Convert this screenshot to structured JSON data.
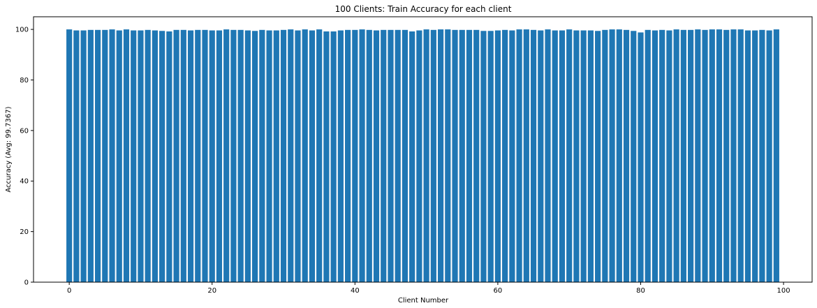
{
  "chart_data": {
    "type": "bar",
    "title": "100 Clients: Train Accuracy for each client",
    "xlabel": "Client Number",
    "ylabel": "Accuracy (Avg: 99.7367)",
    "x_ticks": [
      0,
      20,
      40,
      60,
      80,
      100
    ],
    "y_ticks": [
      0,
      20,
      40,
      60,
      80,
      100
    ],
    "xlim": [
      -5,
      104
    ],
    "ylim": [
      0,
      105
    ],
    "bar_color": "#1f77b4",
    "grid": false,
    "categories": [
      0,
      1,
      2,
      3,
      4,
      5,
      6,
      7,
      8,
      9,
      10,
      11,
      12,
      13,
      14,
      15,
      16,
      17,
      18,
      19,
      20,
      21,
      22,
      23,
      24,
      25,
      26,
      27,
      28,
      29,
      30,
      31,
      32,
      33,
      34,
      35,
      36,
      37,
      38,
      39,
      40,
      41,
      42,
      43,
      44,
      45,
      46,
      47,
      48,
      49,
      50,
      51,
      52,
      53,
      54,
      55,
      56,
      57,
      58,
      59,
      60,
      61,
      62,
      63,
      64,
      65,
      66,
      67,
      68,
      69,
      70,
      71,
      72,
      73,
      74,
      75,
      76,
      77,
      78,
      79,
      80,
      81,
      82,
      83,
      84,
      85,
      86,
      87,
      88,
      89,
      90,
      91,
      92,
      93,
      94,
      95,
      96,
      97,
      98,
      99
    ],
    "values": [
      100.0,
      99.6,
      99.6,
      99.8,
      99.8,
      99.8,
      100.0,
      99.6,
      100.0,
      99.6,
      99.6,
      99.8,
      99.6,
      99.4,
      99.2,
      99.8,
      99.8,
      99.6,
      99.8,
      99.8,
      99.6,
      99.6,
      100.0,
      99.8,
      99.8,
      99.6,
      99.4,
      99.8,
      99.6,
      99.6,
      99.8,
      100.0,
      99.6,
      100.0,
      99.6,
      100.0,
      99.2,
      99.2,
      99.6,
      99.8,
      99.8,
      100.0,
      99.8,
      99.6,
      99.8,
      99.8,
      99.8,
      99.8,
      99.2,
      99.6,
      100.0,
      99.8,
      100.0,
      100.0,
      99.8,
      99.8,
      99.8,
      99.8,
      99.4,
      99.4,
      99.6,
      99.8,
      99.6,
      100.0,
      100.0,
      99.8,
      99.6,
      100.0,
      99.6,
      99.6,
      100.0,
      99.6,
      99.6,
      99.6,
      99.4,
      99.8,
      100.0,
      100.0,
      99.8,
      99.4,
      98.8,
      99.8,
      99.6,
      99.8,
      99.6,
      100.0,
      99.8,
      99.8,
      100.0,
      99.8,
      100.0,
      100.0,
      99.8,
      100.0,
      100.0,
      99.6,
      99.6,
      99.8,
      99.6,
      100.0
    ]
  }
}
